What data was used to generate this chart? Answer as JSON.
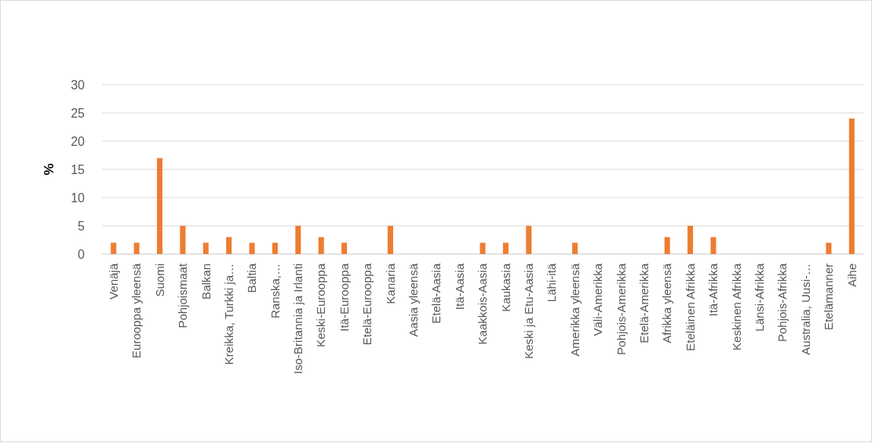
{
  "chart_data": {
    "type": "bar",
    "ylabel": "%",
    "categories": [
      "Venäjä",
      "Eurooppa yleensä",
      "Suomi",
      "Pohjoismaat",
      "Balkan",
      "Kreikka, Turkki ja…",
      "Baltia",
      "Ranska,…",
      "Iso-Britannia ja Irlanti",
      "Keski-Eurooppa",
      "Itä-Eurooppa",
      "Etelä-Eurooppa",
      "Kanaria",
      "Aasia yleensä",
      "Etelä-Aasia",
      "Itä-Aasia",
      "Kaakkois-Aasia",
      "Kaukasia",
      "Keski ja Etu-Aasia",
      "Lähi-itä",
      "Amerikka yleensä",
      "Väli-Amerikka",
      "Pohjois-Amerikka",
      "Etelä-Amerikka",
      "Afrikka yleensä",
      "Eteläinen Afrikka",
      "Itä-Afrikka",
      "Keskinen Afrikka",
      "Länsi-Afrikka",
      "Pohjois-Afrikka",
      "Australia, Uusi-…",
      "Etelämanner",
      "Aihe"
    ],
    "values": [
      2,
      2,
      17,
      5,
      2,
      3,
      2,
      2,
      5,
      3,
      2,
      0,
      5,
      0,
      0,
      0,
      2,
      2,
      5,
      0,
      2,
      0,
      0,
      0,
      3,
      5,
      3,
      0,
      0,
      0,
      0,
      2,
      24
    ],
    "color": "#ed7d31",
    "ylim": [
      0,
      30
    ],
    "yticks": [
      0,
      5,
      10,
      15,
      20,
      25,
      30
    ],
    "grid": "y"
  }
}
